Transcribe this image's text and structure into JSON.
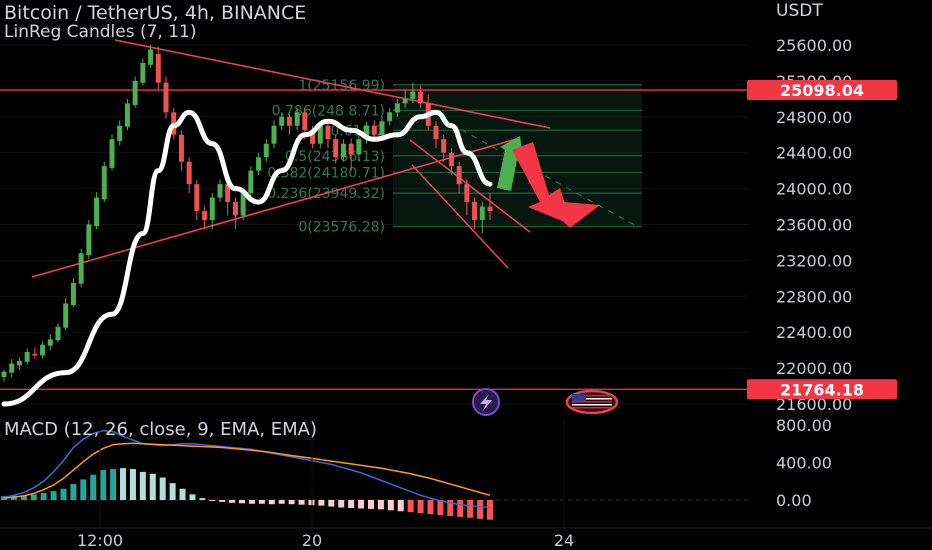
{
  "header": {
    "symbol_line": "Bitcoin / TetherUS, 4h, BINANCE",
    "indicator_line": "LinReg Candles (7, 11)",
    "currency": "USDT",
    "macd_line": "MACD (12, 26, close, 9, EMA, EMA)"
  },
  "chart_data": [
    {
      "type": "candlestick",
      "title": "Bitcoin / TetherUS, 4h, BINANCE",
      "ylabel": "USDT",
      "y_ticks": [
        25600,
        25200,
        24800,
        24400,
        24000,
        23600,
        23200,
        22800,
        22400,
        22000,
        21600
      ],
      "y_tick_labels": [
        "25600.00",
        "25200.00",
        "24800.00",
        "24400.00",
        "24000.00",
        "23600.00",
        "23200.00",
        "22800.00",
        "22400.00",
        "22000.00",
        "21600.00"
      ],
      "x_tick_labels": [
        "12:00",
        "20",
        "24"
      ],
      "price_labels": [
        {
          "value": 25098.04,
          "label": "25098.04",
          "color": "#f23645"
        },
        {
          "value": 21764.18,
          "label": "21764.18",
          "color": "#f23645"
        }
      ],
      "fib_levels": [
        {
          "ratio": "1",
          "price": 25156.99,
          "label": "1(25156.99)"
        },
        {
          "ratio": "0.786",
          "price": 24871,
          "label": "0.786(248 8.71)"
        },
        {
          "ratio": "0.618",
          "price": 24650,
          "label": "0.618(2"
        },
        {
          "ratio": "0.5",
          "price": 24366,
          "label": "0.5(24366.13)"
        },
        {
          "ratio": "0.382",
          "price": 24180,
          "label": "0.382(24180.71)"
        },
        {
          "ratio": "0.236",
          "price": 23949.32,
          "label": "0.236(23949.32)"
        },
        {
          "ratio": "0",
          "price": 23576.28,
          "label": "0(23576.28)"
        }
      ],
      "candles": [
        [
          21900,
          21960,
          21850,
          21980
        ],
        [
          21950,
          22050,
          21900,
          22100
        ],
        [
          22030,
          22080,
          21980,
          22120
        ],
        [
          22070,
          22180,
          22040,
          22220
        ],
        [
          22160,
          22140,
          22100,
          22230
        ],
        [
          22140,
          22260,
          22110,
          22300
        ],
        [
          22250,
          22320,
          22200,
          22380
        ],
        [
          22310,
          22460,
          22290,
          22500
        ],
        [
          22450,
          22720,
          22420,
          22780
        ],
        [
          22700,
          22950,
          22680,
          23000
        ],
        [
          22940,
          23280,
          22900,
          23330
        ],
        [
          23260,
          23600,
          23220,
          23650
        ],
        [
          23580,
          23900,
          23550,
          23960
        ],
        [
          23880,
          24250,
          23850,
          24300
        ],
        [
          24230,
          24550,
          24200,
          24600
        ],
        [
          24530,
          24700,
          24480,
          24760
        ],
        [
          24690,
          24950,
          24650,
          25000
        ],
        [
          24930,
          25200,
          24900,
          25250
        ],
        [
          25180,
          25400,
          25150,
          25450
        ],
        [
          25380,
          25550,
          25350,
          25600
        ],
        [
          25500,
          25180,
          25100,
          25580
        ],
        [
          25180,
          24850,
          24780,
          25250
        ],
        [
          24850,
          24600,
          24550,
          24900
        ],
        [
          24600,
          24300,
          24200,
          24650
        ],
        [
          24300,
          24050,
          23950,
          24350
        ],
        [
          24050,
          23750,
          23650,
          24100
        ],
        [
          23750,
          23650,
          23550,
          23800
        ],
        [
          23650,
          23900,
          23550,
          23950
        ],
        [
          23900,
          24050,
          23850,
          24100
        ],
        [
          24050,
          23850,
          23700,
          24120
        ],
        [
          23850,
          23700,
          23550,
          23900
        ],
        [
          23700,
          23950,
          23650,
          24000
        ],
        [
          23950,
          24200,
          23900,
          24250
        ],
        [
          24200,
          24350,
          24150,
          24400
        ],
        [
          24350,
          24500,
          24300,
          24550
        ],
        [
          24500,
          24700,
          24450,
          24760
        ],
        [
          24700,
          24800,
          24650,
          24850
        ],
        [
          24800,
          24700,
          24600,
          24850
        ],
        [
          24700,
          24850,
          24650,
          24900
        ],
        [
          24850,
          24650,
          24550,
          24900
        ],
        [
          24650,
          24500,
          24450,
          24700
        ],
        [
          24500,
          24700,
          24450,
          24750
        ],
        [
          24700,
          24550,
          24450,
          24760
        ],
        [
          24550,
          24350,
          24280,
          24600
        ],
        [
          24350,
          24500,
          24300,
          24550
        ],
        [
          24500,
          24380,
          24200,
          24560
        ],
        [
          24380,
          24550,
          24300,
          24600
        ],
        [
          24550,
          24700,
          24500,
          24750
        ],
        [
          24700,
          24600,
          24550,
          24760
        ],
        [
          24600,
          24750,
          24550,
          24800
        ],
        [
          24750,
          24850,
          24700,
          24900
        ],
        [
          24850,
          24950,
          24800,
          25000
        ],
        [
          24950,
          25000,
          24900,
          25100
        ],
        [
          25000,
          25080,
          24950,
          25180
        ],
        [
          25080,
          24950,
          24900,
          25150
        ],
        [
          24950,
          24700,
          24650,
          25050
        ],
        [
          24700,
          24550,
          24450,
          24750
        ],
        [
          24550,
          24400,
          24300,
          24600
        ],
        [
          24400,
          24250,
          24150,
          24450
        ],
        [
          24250,
          24050,
          23950,
          24300
        ],
        [
          24050,
          23850,
          23700,
          24100
        ],
        [
          23850,
          23650,
          23550,
          23900
        ],
        [
          23650,
          23800,
          23500,
          23850
        ],
        [
          23800,
          23750,
          23650,
          23950
        ]
      ],
      "linreg_curve_points": [
        [
          0,
          21600
        ],
        [
          8,
          21950
        ],
        [
          14,
          22600
        ],
        [
          18,
          23500
        ],
        [
          20,
          24200
        ],
        [
          22,
          24700
        ],
        [
          24,
          24850
        ],
        [
          27,
          24500
        ],
        [
          30,
          24000
        ],
        [
          33,
          23850
        ],
        [
          36,
          24200
        ],
        [
          39,
          24600
        ],
        [
          42,
          24750
        ],
        [
          45,
          24650
        ],
        [
          48,
          24550
        ],
        [
          51,
          24600
        ],
        [
          54,
          24800
        ],
        [
          56,
          24850
        ],
        [
          58,
          24700
        ],
        [
          60,
          24400
        ],
        [
          63,
          24050
        ]
      ]
    },
    {
      "type": "macd",
      "title": "MACD (12, 26, close, 9, EMA, EMA)",
      "y_ticks": [
        800,
        400,
        0
      ],
      "y_tick_labels": [
        "800.00",
        "400.00",
        "0.00"
      ],
      "histogram": [
        40,
        45,
        50,
        60,
        75,
        95,
        120,
        170,
        220,
        270,
        320,
        330,
        340,
        330,
        300,
        280,
        240,
        180,
        120,
        60,
        20,
        -10,
        -20,
        -30,
        -35,
        -40,
        -40,
        -45,
        -40,
        -45,
        -50,
        -55,
        -60,
        -70,
        -80,
        -85,
        -90,
        -95,
        -100,
        -110,
        -120,
        -130,
        -140,
        -150,
        -160,
        -170,
        -180,
        -190,
        -200,
        -210
      ],
      "macd": [
        30,
        50,
        80,
        130,
        200,
        300,
        420,
        560,
        650,
        710,
        740,
        730,
        680,
        640,
        600,
        590,
        580,
        590,
        600,
        600,
        590,
        580,
        570,
        560,
        550,
        540,
        520,
        500,
        480,
        460,
        440,
        420,
        400,
        380,
        350,
        320,
        290,
        250,
        210,
        170,
        130,
        90,
        50,
        20,
        -10,
        -30,
        -50,
        -60,
        -70,
        -80
      ],
      "signal": [
        20,
        30,
        45,
        70,
        110,
        160,
        230,
        320,
        410,
        490,
        550,
        590,
        600,
        605,
        600,
        595,
        590,
        585,
        580,
        575,
        570,
        565,
        560,
        550,
        540,
        530,
        520,
        505,
        490,
        475,
        460,
        445,
        430,
        415,
        400,
        385,
        370,
        355,
        340,
        320,
        300,
        280,
        255,
        230,
        200,
        170,
        140,
        110,
        80,
        50
      ]
    }
  ],
  "icons": [
    "lightning-icon",
    "us-flag-icon"
  ],
  "colors": {
    "up": "#26a69a",
    "up_bright": "#4caf50",
    "down": "#ef5350",
    "trendline": "#e84057",
    "fib": "#1b5e3b",
    "linreg": "#ffffff",
    "macd_line": "#3f68d8",
    "signal_line": "#ff9a1f",
    "badge": "#f23645"
  }
}
